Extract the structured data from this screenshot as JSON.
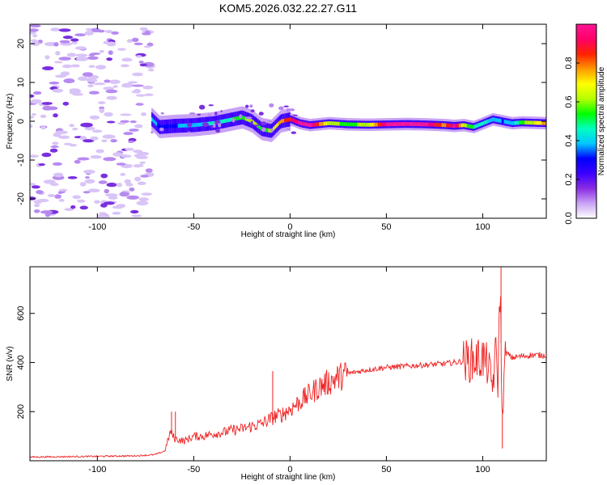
{
  "title": "KOM5.2026.032.22.27.G11",
  "chart_data": [
    {
      "type": "heatmap",
      "name": "spectrogram",
      "xlabel": "Height of straight line (km)",
      "ylabel": "Frequency (Hz)",
      "xlim": [
        -135,
        133
      ],
      "ylim": [
        -25,
        25
      ],
      "xticks": [
        -100,
        -50,
        0,
        50,
        100
      ],
      "yticks": [
        -20,
        -10,
        0,
        10,
        20
      ],
      "noise_region": [
        -135,
        -72
      ],
      "ridge": {
        "x": [
          -72,
          -68,
          -60,
          -50,
          -40,
          -30,
          -25,
          -20,
          -15,
          -10,
          -5,
          0,
          5,
          10,
          20,
          30,
          40,
          50,
          60,
          70,
          80,
          85,
          90,
          95,
          100,
          105,
          110,
          115,
          120,
          133
        ],
        "freq": [
          0.5,
          -1.5,
          -1.2,
          -1.0,
          -0.5,
          0.5,
          1.0,
          0.0,
          -2.0,
          -2.5,
          0.0,
          0.5,
          -0.5,
          -1.0,
          -0.5,
          -0.8,
          -0.9,
          -0.8,
          -0.7,
          -0.8,
          -1.0,
          -1.2,
          -1.0,
          -1.5,
          -0.5,
          0.5,
          0.0,
          -0.5,
          -0.3,
          -0.5
        ],
        "amplitude": [
          0.45,
          0.3,
          0.35,
          0.4,
          0.45,
          0.5,
          0.55,
          0.65,
          0.5,
          0.6,
          0.75,
          0.85,
          0.95,
          0.97,
          0.6,
          0.55,
          0.6,
          0.95,
          0.98,
          0.95,
          0.75,
          0.97,
          0.6,
          0.5,
          0.45,
          0.4,
          0.35,
          0.4,
          0.55,
          0.75
        ]
      }
    },
    {
      "type": "colorbar",
      "name": "amplitude-colorbar",
      "label": "Normalized spectral amplitude",
      "range": [
        0,
        1
      ],
      "ticks": [
        0.0,
        0.2,
        0.4,
        0.6,
        0.8
      ],
      "tick_labels": [
        "0.0",
        "0.2",
        "0.4",
        "0.6",
        "0.8"
      ],
      "colors": [
        "#ffffff",
        "#c9a3f5",
        "#8a2be2",
        "#3b00ff",
        "#0000ff",
        "#00c8ff",
        "#00ffc0",
        "#00ff00",
        "#b4ff00",
        "#ffff00",
        "#ff9900",
        "#ff2200",
        "#ff0066",
        "#ff1493"
      ]
    },
    {
      "type": "line",
      "name": "snr",
      "xlabel": "Height of straight line (km)",
      "ylabel": "SNR (v/v)",
      "xlim": [
        -135,
        133
      ],
      "ylim": [
        0,
        790
      ],
      "xticks": [
        -100,
        -50,
        0,
        50,
        100
      ],
      "yticks": [
        200,
        400,
        600
      ],
      "color": "#ee2222",
      "series": [
        {
          "name": "SNR",
          "x": [
            -135,
            -100,
            -80,
            -70,
            -65,
            -62,
            -60,
            -55,
            -50,
            -45,
            -40,
            -35,
            -30,
            -25,
            -20,
            -15,
            -10,
            -8,
            -5,
            0,
            5,
            10,
            15,
            20,
            25,
            30,
            40,
            50,
            60,
            70,
            80,
            90,
            95,
            100,
            103,
            105,
            107,
            108,
            109,
            110,
            112,
            115,
            120,
            125,
            133
          ],
          "y": [
            15,
            18,
            20,
            25,
            40,
            120,
            90,
            80,
            100,
            100,
            110,
            115,
            125,
            130,
            140,
            150,
            170,
            180,
            185,
            210,
            240,
            270,
            300,
            320,
            340,
            355,
            370,
            380,
            385,
            390,
            395,
            405,
            410,
            420,
            380,
            300,
            450,
            300,
            780,
            180,
            440,
            420,
            425,
            430,
            430
          ]
        }
      ],
      "spikes": [
        {
          "x": -61.5,
          "y": 200
        },
        {
          "x": -59.5,
          "y": 200
        },
        {
          "x": -9.0,
          "y": 365
        },
        {
          "x": 109.5,
          "y": 790
        },
        {
          "x": 110.2,
          "y": 50
        }
      ]
    }
  ]
}
